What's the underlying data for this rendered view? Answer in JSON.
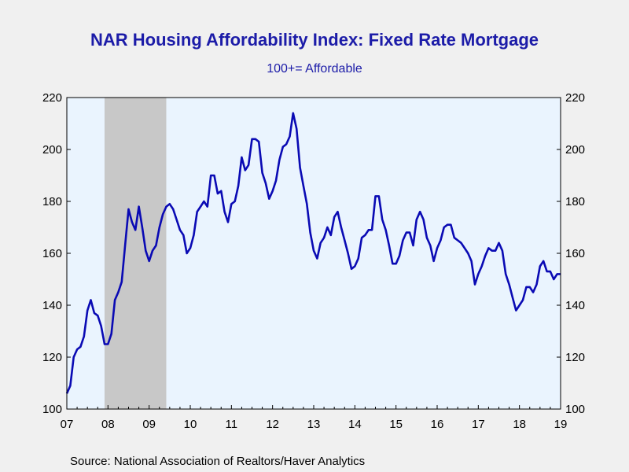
{
  "chart_data": {
    "type": "line",
    "title": "NAR Housing Affordability Index: Fixed Rate Mortgage",
    "subtitle": "100+= Affordable",
    "source": "Source:  National Association of Realtors/Haver Analytics",
    "ylim": [
      100,
      220
    ],
    "y_ticks": [
      100,
      120,
      140,
      160,
      180,
      200,
      220
    ],
    "y_tick_labels": [
      "100",
      "120",
      "140",
      "160",
      "180",
      "200",
      "220"
    ],
    "x_tick_labels": [
      "07",
      "08",
      "09",
      "10",
      "11",
      "12",
      "13",
      "14",
      "15",
      "16",
      "17",
      "18",
      "19"
    ],
    "x_range": [
      "2007-01",
      "2019-01"
    ],
    "recession_shading": {
      "start": "2007-12",
      "end": "2009-06"
    },
    "grid": false,
    "colors": {
      "line": "#0a0ab4",
      "plot_bg": "#eaf4fe",
      "recession": "#c8c8c8",
      "text": "#1c1ca8"
    },
    "series": [
      {
        "x": [
          "2007-01",
          "2007-02",
          "2007-03",
          "2007-04",
          "2007-05",
          "2007-06",
          "2007-07",
          "2007-08",
          "2007-09",
          "2007-10",
          "2007-11",
          "2007-12",
          "2008-01",
          "2008-02",
          "2008-03",
          "2008-04",
          "2008-05",
          "2008-06",
          "2008-07",
          "2008-08",
          "2008-09",
          "2008-10",
          "2008-11",
          "2008-12",
          "2009-01",
          "2009-02",
          "2009-03",
          "2009-04",
          "2009-05",
          "2009-06",
          "2009-07",
          "2009-08",
          "2009-09",
          "2009-10",
          "2009-11",
          "2009-12",
          "2010-01",
          "2010-02",
          "2010-03",
          "2010-04",
          "2010-05",
          "2010-06",
          "2010-07",
          "2010-08",
          "2010-09",
          "2010-10",
          "2010-11",
          "2010-12",
          "2011-01",
          "2011-02",
          "2011-03",
          "2011-04",
          "2011-05",
          "2011-06",
          "2011-07",
          "2011-08",
          "2011-09",
          "2011-10",
          "2011-11",
          "2011-12",
          "2012-01",
          "2012-02",
          "2012-03",
          "2012-04",
          "2012-05",
          "2012-06",
          "2012-07",
          "2012-08",
          "2012-09",
          "2012-10",
          "2012-11",
          "2012-12",
          "2013-01",
          "2013-02",
          "2013-03",
          "2013-04",
          "2013-05",
          "2013-06",
          "2013-07",
          "2013-08",
          "2013-09",
          "2013-10",
          "2013-11",
          "2013-12",
          "2014-01",
          "2014-02",
          "2014-03",
          "2014-04",
          "2014-05",
          "2014-06",
          "2014-07",
          "2014-08",
          "2014-09",
          "2014-10",
          "2014-11",
          "2014-12",
          "2015-01",
          "2015-02",
          "2015-03",
          "2015-04",
          "2015-05",
          "2015-06",
          "2015-07",
          "2015-08",
          "2015-09",
          "2015-10",
          "2015-11",
          "2015-12",
          "2016-01",
          "2016-02",
          "2016-03",
          "2016-04",
          "2016-05",
          "2016-06",
          "2016-07",
          "2016-08",
          "2016-09",
          "2016-10",
          "2016-11",
          "2016-12",
          "2017-01",
          "2017-02",
          "2017-03",
          "2017-04",
          "2017-05",
          "2017-06",
          "2017-07",
          "2017-08",
          "2017-09",
          "2017-10",
          "2017-11",
          "2017-12",
          "2018-01",
          "2018-02",
          "2018-03",
          "2018-04",
          "2018-05",
          "2018-06",
          "2018-07",
          "2018-08",
          "2018-09",
          "2018-10",
          "2018-11",
          "2018-12",
          "2019-01"
        ],
        "values": [
          106,
          109,
          120,
          123,
          124,
          128,
          138,
          142,
          137,
          136,
          132,
          125,
          125,
          129,
          142,
          145,
          149,
          163,
          177,
          172,
          169,
          178,
          170,
          161,
          157,
          161,
          163,
          170,
          175,
          178,
          179,
          177,
          173,
          169,
          167,
          160,
          162,
          167,
          176,
          178,
          180,
          178,
          190,
          190,
          183,
          184,
          176,
          172,
          179,
          180,
          186,
          197,
          192,
          194,
          204,
          204,
          203,
          191,
          187,
          181,
          184,
          188,
          196,
          201,
          202,
          205,
          214,
          208,
          193,
          186,
          179,
          168,
          161,
          158,
          164,
          166,
          170,
          167,
          174,
          176,
          170,
          165,
          160,
          154,
          155,
          158,
          166,
          167,
          169,
          169,
          182,
          182,
          173,
          169,
          163,
          156,
          156,
          159,
          165,
          168,
          168,
          163,
          173,
          176,
          173,
          166,
          163,
          157,
          162,
          165,
          170,
          171,
          171,
          166,
          165,
          164,
          162,
          160,
          157,
          148,
          152,
          155,
          159,
          162,
          161,
          161,
          164,
          161,
          152,
          148,
          143,
          138,
          140,
          142,
          147,
          147,
          145,
          148,
          155,
          157,
          153,
          153,
          150,
          152,
          152
        ]
      }
    ]
  }
}
